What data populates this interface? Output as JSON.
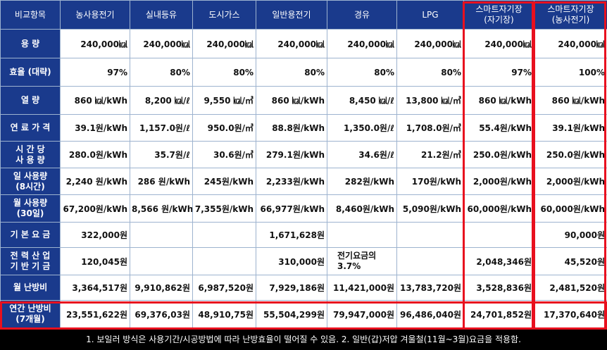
{
  "headers": [
    "비교항목",
    "농사용전기",
    "실내등유",
    "도시가스",
    "일반용전기",
    "경유",
    "LPG",
    "스마트자기장\n(자기장)",
    "스마트자기장\n(농사전기)"
  ],
  "rows": [
    {
      "label": "용 량",
      "cells": [
        "240,000㎉",
        "240,000㎉",
        "240,000㎉",
        "240,000㎉",
        "240,000㎉",
        "240,000㎉",
        "240,000㎉",
        "240,000㎉"
      ]
    },
    {
      "label": "효율 (대략)",
      "cells": [
        "97%",
        "80%",
        "80%",
        "80%",
        "80%",
        "80%",
        "97%",
        "100%"
      ]
    },
    {
      "label": "열 량",
      "cells": [
        "860 ㎉/kWh",
        "8,200 ㎉/ℓ",
        "9,550 ㎉/㎥",
        "860 ㎉/kWh",
        "8,450 ㎉/ℓ",
        "13,800 ㎉/㎥",
        "860 ㎉/kWh",
        "860 ㎉/kWh"
      ]
    },
    {
      "label": "연 료 가 격",
      "cells": [
        "39.1원/kWh",
        "1,157.0원/ℓ",
        "950.0원/㎥",
        "88.8원/kWh",
        "1,350.0원/ℓ",
        "1,708.0원/㎥",
        "55.4원/kWh",
        "39.1원/kWh"
      ]
    },
    {
      "label": "시 간 당\n사 용 량",
      "cells": [
        "280.0원/kWh",
        "35.7원/ℓ",
        "30.6원/㎥",
        "279.1원/kWh",
        "34.6원/ℓ",
        "21.2원/㎥",
        "250.0원/kWh",
        "250.0원/kWh"
      ]
    },
    {
      "label": "일 사용량\n(8시간)",
      "cells": [
        "2,240 원/kWh",
        "286 원/kWh",
        "245원/kWh",
        "2,233원/kWh",
        "282원/kWh",
        "170원/kWh",
        "2,000원/kWh",
        "2,000원/kWh"
      ]
    },
    {
      "label": "월 사용량\n(30일)",
      "cells": [
        "67,200원/kWh",
        "8,566 원/kWh",
        "7,355원/kWh",
        "66,977원/kWh",
        "8,460원/kWh",
        "5,090원/kWh",
        "60,000원/kWh",
        "60,000원/kWh"
      ]
    },
    {
      "label": "기 본 요 금",
      "cells": [
        "322,000원",
        "",
        "",
        "1,671,628원",
        "",
        "",
        "",
        "90,000원"
      ]
    },
    {
      "label": "전 력 산 업\n기 반 기 금",
      "cells": [
        "120,045원",
        "",
        "",
        "310,000원",
        "전기요금의\n3.7%",
        "",
        "2,048,346원",
        "45,520원"
      ]
    },
    {
      "label": "월 난방비",
      "cells": [
        "3,364,517원",
        "9,910,862원",
        "6,987,520원",
        "7,929,186원",
        "11,421,000원",
        "13,783,720원",
        "3,528,836원",
        "2,481,520원"
      ]
    },
    {
      "label": "연간 난방비\n(7개월)",
      "cells": [
        "23,551,622원",
        "69,376,03원",
        "48,910,75원",
        "55,504,299원",
        "79,947,000원",
        "96,486,040원",
        "24,701,852원",
        "17,370,640원"
      ]
    }
  ],
  "footnote": "1. 보일러 방식은 사용기간/시공방법에 따라 난방효율이 떨어질 수 있음.  2. 일반(갑)저압 겨울철(11월~3월)요금을 적용함.",
  "colors": {
    "header_bg": "#1a3a8c",
    "highlight": "#e8101e",
    "footer_bg": "#000000"
  }
}
